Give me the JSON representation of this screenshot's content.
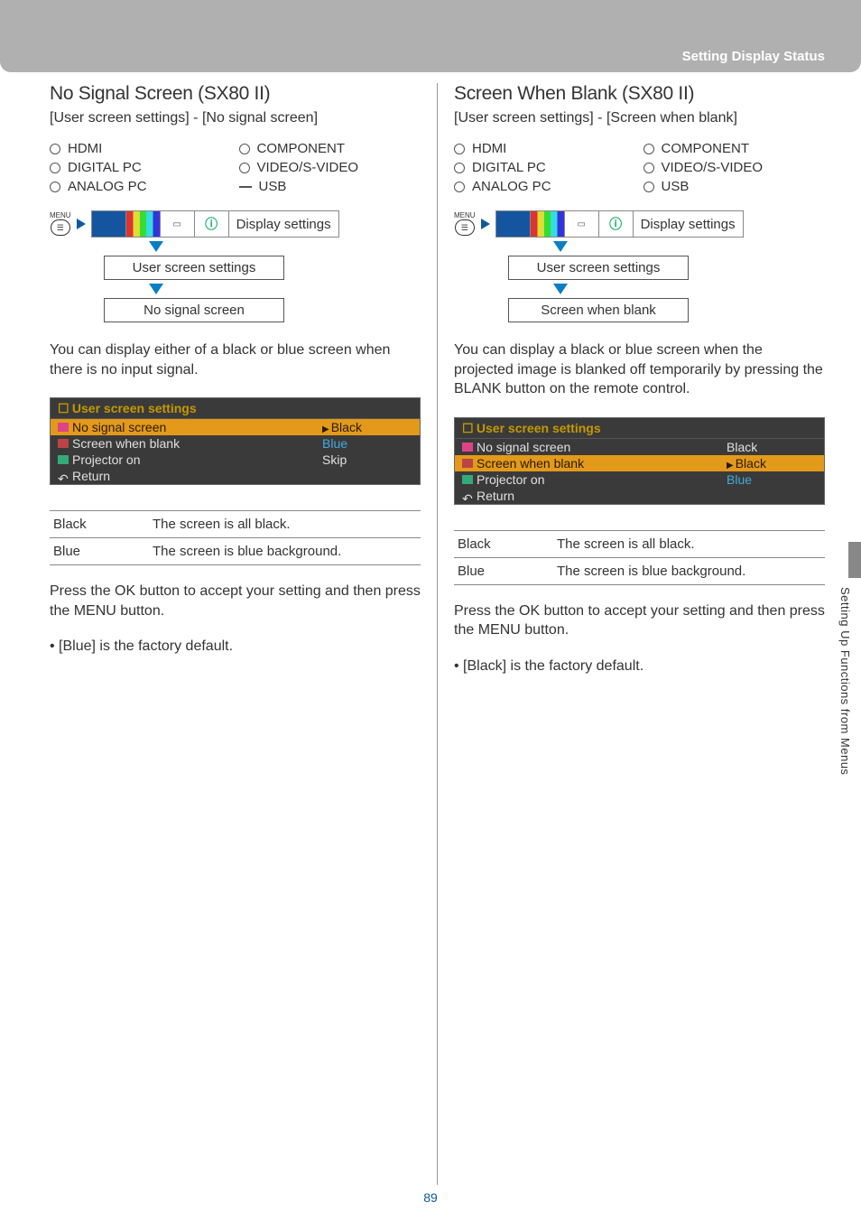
{
  "header": {
    "title": "Setting Display Status"
  },
  "sideTab": "Setting Up Functions from Menus",
  "pageNumber": "89",
  "ports": {
    "hdmi": "HDMI",
    "component": "COMPONENT",
    "digitalpc": "DIGITAL PC",
    "videosvideo": "VIDEO/S-VIDEO",
    "analogpc": "ANALOG PC",
    "usb": "USB"
  },
  "nav": {
    "menuWord": "MENU",
    "displaySettings": "Display settings",
    "userScreenSettings": "User screen settings"
  },
  "osdCommon": {
    "header": "User screen settings",
    "noSignal": "No signal screen",
    "screenWhenBlank": "Screen when blank",
    "projectorOn": "Projector on",
    "return": "Return",
    "black": "Black",
    "blue": "Blue",
    "skip": "Skip"
  },
  "defs": {
    "blackLabel": "Black",
    "blackDesc": "The screen is all black.",
    "blueLabel": "Blue",
    "blueDesc": "The screen is blue background."
  },
  "left": {
    "title": "No Signal Screen (SX80 II)",
    "breadcrumb": "[User screen settings] - [No signal screen]",
    "navLeaf": "No signal screen",
    "body": "You can display either of a black or blue screen when there is no input signal.",
    "accept": "Press the OK button to accept your setting and then press the MENU button.",
    "default": "[Blue] is the factory default.",
    "usbMark": "dash"
  },
  "right": {
    "title": "Screen When Blank (SX80 II)",
    "breadcrumb": "[User screen settings] - [Screen when blank]",
    "navLeaf": "Screen when blank",
    "body": "You can display a black or blue screen when the projected image is blanked off temporarily by pressing the BLANK button on the remote control.",
    "accept": "Press the OK button to accept your setting and then press the MENU button.",
    "default": "[Black] is the factory default.",
    "usbMark": "circle"
  }
}
